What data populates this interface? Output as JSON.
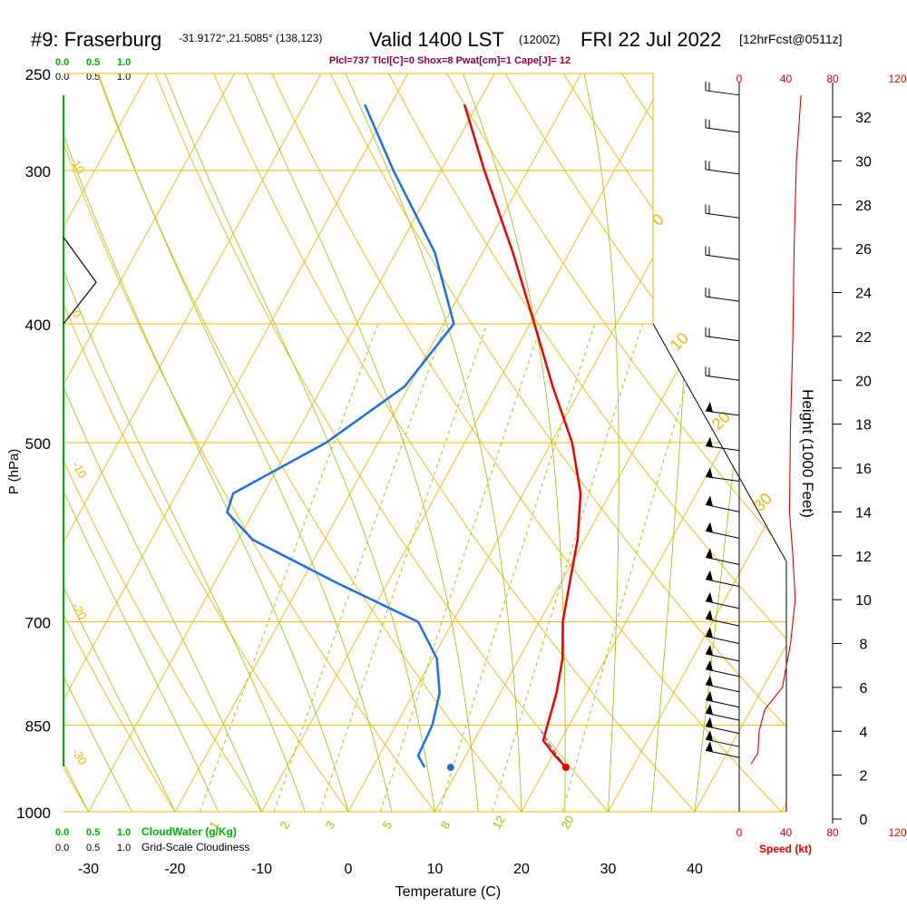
{
  "header": {
    "station": "#9: Fraserburg",
    "coords": "-31.9172°,21.5085° (138,123)",
    "valid": "Valid 1400 LST",
    "zulu": "(1200Z)",
    "date": "FRI 22 Jul 2022",
    "forecast": "[12hrFcst@0511z]"
  },
  "indices": "Plcl=737 Tlcl[C]=0 Shox=8 Pwat[cm]=1 Cape[J]= 12",
  "top_scales": {
    "cloudwater_ticks": [
      "0.0",
      "0.5",
      "1.0"
    ],
    "cloudiness_ticks": [
      "0.0",
      "0.5",
      "1.0"
    ]
  },
  "bottom_scales": {
    "cloudwater_label": "CloudWater (g/Kg)",
    "cloudiness_label": "Grid-Scale Cloudiness",
    "cloudwater_ticks": [
      "0.0",
      "0.5",
      "1.0"
    ],
    "cloudiness_ticks": [
      "0.0",
      "0.5",
      "1.0"
    ]
  },
  "speed_scale": {
    "label": "Speed (kt)",
    "ticks": [
      0,
      40,
      80,
      120
    ]
  },
  "colors": {
    "isotherm": "#f2b600",
    "dry_adiabat": "#f2b600",
    "moist_adiabat": "#8fc400",
    "mixing_ratio": "#8fc400",
    "temperature": "#ee0000",
    "dewpoint": "#1e6ee8",
    "cloudwater": "#00b000",
    "indices_text": "#8b0040",
    "speed": "#dd0000"
  },
  "chart_data": {
    "type": "skew-t",
    "xlabel": "Temperature (C)",
    "ylabel": "P (hPa)",
    "ylabel_right": "Height (1000 Feet)",
    "pressure_ticks": [
      250,
      300,
      400,
      500,
      700,
      850,
      1000
    ],
    "temperature_ticks": [
      -30,
      -20,
      -10,
      0,
      10,
      20,
      30,
      40
    ],
    "height_ticks": [
      0,
      2,
      4,
      6,
      8,
      10,
      12,
      14,
      16,
      18,
      20,
      22,
      24,
      26,
      28,
      30,
      32
    ],
    "temp_range": [
      -33,
      46
    ],
    "pressure_range": [
      1000,
      250
    ],
    "temperature_profile": [
      {
        "p": 920,
        "t": 22.3
      },
      {
        "p": 900,
        "t": 20.3
      },
      {
        "p": 875,
        "t": 18.0
      },
      {
        "p": 850,
        "t": 17.5
      },
      {
        "p": 800,
        "t": 16.5
      },
      {
        "p": 750,
        "t": 15.0
      },
      {
        "p": 700,
        "t": 12.7
      },
      {
        "p": 650,
        "t": 11.0
      },
      {
        "p": 600,
        "t": 9.2
      },
      {
        "p": 550,
        "t": 6.6
      },
      {
        "p": 500,
        "t": 2.4
      },
      {
        "p": 450,
        "t": -3.4
      },
      {
        "p": 400,
        "t": -9.5
      },
      {
        "p": 350,
        "t": -16.5
      },
      {
        "p": 300,
        "t": -25.0
      },
      {
        "p": 265,
        "t": -31.5
      }
    ],
    "dewpoint_profile": [
      {
        "p": 920,
        "t": 6.0
      },
      {
        "p": 900,
        "t": 4.5
      },
      {
        "p": 850,
        "t": 4.2
      },
      {
        "p": 800,
        "t": 3.0
      },
      {
        "p": 750,
        "t": 0.5
      },
      {
        "p": 700,
        "t": -4.0
      },
      {
        "p": 650,
        "t": -16.0
      },
      {
        "p": 600,
        "t": -28.3
      },
      {
        "p": 570,
        "t": -33.0
      },
      {
        "p": 550,
        "t": -33.5
      },
      {
        "p": 500,
        "t": -26.0
      },
      {
        "p": 450,
        "t": -20.5
      },
      {
        "p": 400,
        "t": -18.8
      },
      {
        "p": 350,
        "t": -25.5
      },
      {
        "p": 300,
        "t": -35.5
      },
      {
        "p": 265,
        "t": -43.0
      }
    ],
    "surface_dewpoint": {
      "p": 920,
      "t": 9.0
    },
    "parcel_path": [
      {
        "p": 920,
        "t": 22.3
      },
      {
        "p": 880,
        "t": 18.8
      },
      {
        "p": 860,
        "t": 17.2
      }
    ],
    "isotherm_labels": [
      -20,
      -10,
      0,
      10,
      20,
      30
    ],
    "dry_adiabat_labels": [
      -20,
      -10,
      0,
      10,
      20,
      30
    ],
    "mixing_ratio_labels": [
      "1",
      "2",
      "3",
      "5",
      "8",
      "12",
      "20"
    ],
    "cloud_fraction_profile": [
      {
        "p": 340,
        "f": 0.0
      },
      {
        "p": 370,
        "f": 0.5
      },
      {
        "p": 400,
        "f": 0.0
      }
    ],
    "wind_speed_profile": [
      {
        "h": 2.5,
        "s": 10
      },
      {
        "h": 3.0,
        "s": 16
      },
      {
        "h": 4.0,
        "s": 17
      },
      {
        "h": 5.0,
        "s": 22
      },
      {
        "h": 6.0,
        "s": 37
      },
      {
        "h": 8.0,
        "s": 44
      },
      {
        "h": 10.0,
        "s": 48
      },
      {
        "h": 12.0,
        "s": 46
      },
      {
        "h": 14.0,
        "s": 43
      },
      {
        "h": 18.0,
        "s": 44
      },
      {
        "h": 22.0,
        "s": 46
      },
      {
        "h": 26.0,
        "s": 47
      },
      {
        "h": 30.0,
        "s": 49
      },
      {
        "h": 33.0,
        "s": 53
      }
    ],
    "wind_barb_heights": [
      2.8,
      3.3,
      3.9,
      4.5,
      5.1,
      5.8,
      6.5,
      7.2,
      8.0,
      8.8,
      9.6,
      10.6,
      11.6,
      12.8,
      14.0,
      15.4,
      16.8,
      18.4,
      20.0,
      21.8,
      23.6,
      25.5,
      27.4,
      29.4,
      31.3,
      33.0
    ]
  }
}
